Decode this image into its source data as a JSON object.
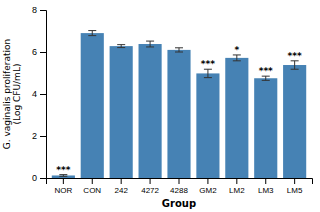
{
  "chart_data": {
    "type": "bar",
    "categories": [
      "NOR",
      "CON",
      "242",
      "4272",
      "4288",
      "GM2",
      "LM2",
      "LM3",
      "LM5"
    ],
    "values": [
      0.12,
      6.9,
      6.28,
      6.38,
      6.1,
      4.98,
      5.72,
      4.75,
      5.38
    ],
    "errors": [
      0.04,
      0.12,
      0.07,
      0.14,
      0.1,
      0.2,
      0.14,
      0.1,
      0.2
    ],
    "significance": [
      "***",
      null,
      null,
      null,
      null,
      "***",
      "*",
      "***",
      "***"
    ],
    "ylabel": "G. vaginalis proliferation\n(Log CFU/mL)",
    "xlabel": "Group",
    "color": "#4682b4",
    "ylim": [
      0,
      8
    ],
    "yticks": [
      0,
      2,
      4,
      6,
      8
    ],
    "grid": false
  }
}
